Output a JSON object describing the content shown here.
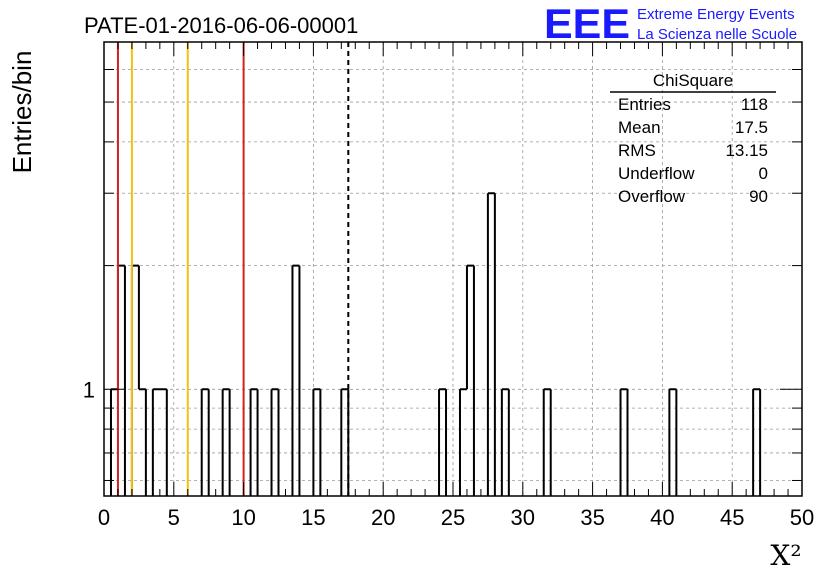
{
  "colors": {
    "histogram": "#000000",
    "grid": "#9a9a9a",
    "red_line": "#d42020",
    "yellow_line": "#f2c20f",
    "mean_line": "#000000",
    "logo": "#1a1aff"
  },
  "logo": {
    "mark": "EEE",
    "line1": "Extreme Energy Events",
    "line2": "La Scienza nelle Scuole"
  },
  "chart_data": {
    "type": "bar",
    "title": "PATE-01-2016-06-06-00001",
    "xlabel": "X²",
    "ylabel": "Entries/bin",
    "xlim": [
      0,
      50
    ],
    "ylim": [
      0.55,
      7
    ],
    "yscale": "log",
    "bin_width": 0.5,
    "x_ticks": [
      "0",
      "5",
      "10",
      "15",
      "20",
      "25",
      "30",
      "35",
      "40",
      "45",
      "50"
    ],
    "y_tick_labels": [
      {
        "value": 1,
        "label": "1"
      }
    ],
    "grid": true,
    "bins": [
      {
        "x": 0.5,
        "y": 1
      },
      {
        "x": 1.0,
        "y": 2
      },
      {
        "x": 2.0,
        "y": 2
      },
      {
        "x": 2.5,
        "y": 1
      },
      {
        "x": 3.5,
        "y": 1
      },
      {
        "x": 4.0,
        "y": 1
      },
      {
        "x": 7.0,
        "y": 1
      },
      {
        "x": 8.5,
        "y": 1
      },
      {
        "x": 10.5,
        "y": 1
      },
      {
        "x": 12.0,
        "y": 1
      },
      {
        "x": 13.5,
        "y": 2
      },
      {
        "x": 15.0,
        "y": 1
      },
      {
        "x": 17.0,
        "y": 1
      },
      {
        "x": 24.0,
        "y": 1
      },
      {
        "x": 25.5,
        "y": 1
      },
      {
        "x": 26.0,
        "y": 2
      },
      {
        "x": 27.5,
        "y": 3
      },
      {
        "x": 28.5,
        "y": 1
      },
      {
        "x": 31.5,
        "y": 1
      },
      {
        "x": 37.0,
        "y": 1
      },
      {
        "x": 40.5,
        "y": 1
      },
      {
        "x": 46.5,
        "y": 1
      }
    ],
    "vlines": [
      {
        "x": 1.0,
        "color": "red"
      },
      {
        "x": 2.0,
        "color": "yellow"
      },
      {
        "x": 6.0,
        "color": "yellow"
      },
      {
        "x": 10.0,
        "color": "red"
      },
      {
        "x": 17.5,
        "color": "black",
        "style": "dashed"
      }
    ],
    "stats": {
      "title": "ChiSquare",
      "rows": [
        {
          "label": "Entries",
          "value": "118"
        },
        {
          "label": "Mean",
          "value": "17.5"
        },
        {
          "label": "RMS",
          "value": "13.15"
        },
        {
          "label": "Underflow",
          "value": "0"
        },
        {
          "label": "Overflow",
          "value": "90"
        }
      ]
    }
  }
}
